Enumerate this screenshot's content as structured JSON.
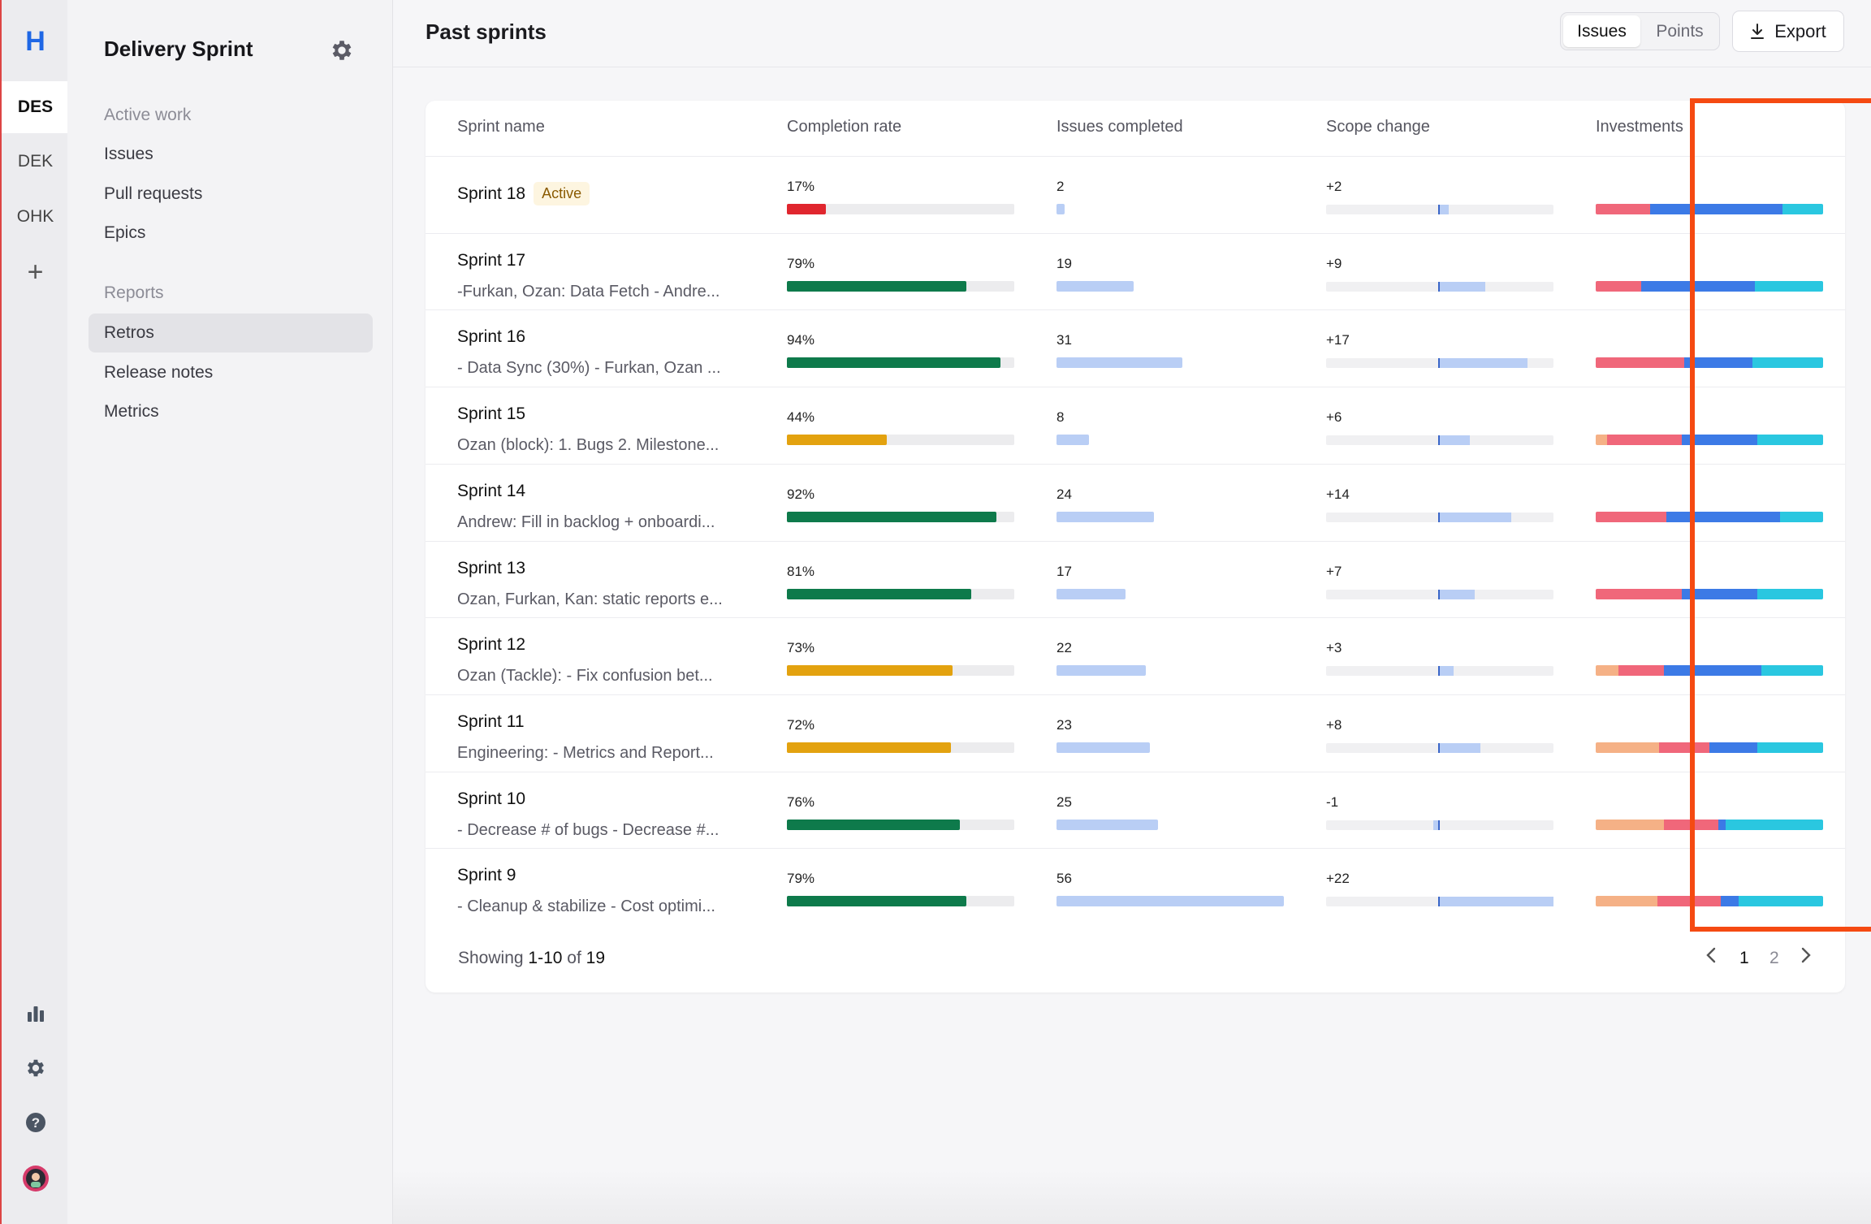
{
  "rail": {
    "logo": "H",
    "workspaces": [
      "DES",
      "DEK",
      "OHK"
    ],
    "add": "+"
  },
  "sidebar": {
    "title": "Delivery Sprint",
    "section_active": "Active work",
    "active_items": [
      "Issues",
      "Pull requests",
      "Epics"
    ],
    "section_reports": "Reports",
    "report_items": [
      "Retros",
      "Release notes",
      "Metrics"
    ]
  },
  "header": {
    "title": "Past sprints",
    "toggle": [
      "Issues",
      "Points"
    ],
    "export": "Export"
  },
  "table": {
    "columns": [
      "Sprint name",
      "Completion rate",
      "Issues completed",
      "Scope change",
      "Investments"
    ],
    "rows": [
      {
        "name": "Sprint 18",
        "badge": "Active",
        "desc": "",
        "rate": "17%",
        "rate_pct": 17,
        "rate_color": "#e0262e",
        "issues": "2",
        "scope": "+2",
        "scope_val": 2,
        "inv": [
          0,
          0.24,
          0.58,
          0.18
        ]
      },
      {
        "name": "Sprint 17",
        "desc": "-Furkan, Ozan: Data Fetch - Andre...",
        "rate": "79%",
        "rate_pct": 79,
        "rate_color": "#0e7a4b",
        "issues": "19",
        "scope": "+9",
        "scope_val": 9,
        "inv": [
          0,
          0.2,
          0.5,
          0.3
        ]
      },
      {
        "name": "Sprint 16",
        "desc": "- Data Sync (30%) - Furkan, Ozan ...",
        "rate": "94%",
        "rate_pct": 94,
        "rate_color": "#0e7a4b",
        "issues": "31",
        "scope": "+17",
        "scope_val": 17,
        "inv": [
          0,
          0.39,
          0.3,
          0.31
        ]
      },
      {
        "name": "Sprint 15",
        "desc": "Ozan (block): 1. Bugs 2. Milestone...",
        "rate": "44%",
        "rate_pct": 44,
        "rate_color": "#e3a20f",
        "issues": "8",
        "scope": "+6",
        "scope_val": 6,
        "inv": [
          0.05,
          0.33,
          0.33,
          0.29
        ]
      },
      {
        "name": "Sprint 14",
        "desc": "Andrew: Fill in backlog + onboardi...",
        "rate": "92%",
        "rate_pct": 92,
        "rate_color": "#0e7a4b",
        "issues": "24",
        "scope": "+14",
        "scope_val": 14,
        "inv": [
          0,
          0.31,
          0.5,
          0.19
        ]
      },
      {
        "name": "Sprint 13",
        "desc": "Ozan, Furkan, Kan: static reports e...",
        "rate": "81%",
        "rate_pct": 81,
        "rate_color": "#0e7a4b",
        "issues": "17",
        "scope": "+7",
        "scope_val": 7,
        "inv": [
          0,
          0.38,
          0.33,
          0.29
        ]
      },
      {
        "name": "Sprint 12",
        "desc": "Ozan (Tackle): - Fix confusion bet...",
        "rate": "73%",
        "rate_pct": 73,
        "rate_color": "#e3a20f",
        "issues": "22",
        "scope": "+3",
        "scope_val": 3,
        "inv": [
          0.1,
          0.2,
          0.43,
          0.27
        ]
      },
      {
        "name": "Sprint 11",
        "desc": "Engineering: - Metrics and Report...",
        "rate": "72%",
        "rate_pct": 72,
        "rate_color": "#e3a20f",
        "issues": "23",
        "scope": "+8",
        "scope_val": 8,
        "inv": [
          0.28,
          0.22,
          0.21,
          0.29
        ]
      },
      {
        "name": "Sprint 10",
        "desc": "- Decrease # of bugs - Decrease #...",
        "rate": "76%",
        "rate_pct": 76,
        "rate_color": "#0e7a4b",
        "issues": "25",
        "scope": "-1",
        "scope_val": -1,
        "inv": [
          0.3,
          0.24,
          0.03,
          0.43
        ]
      },
      {
        "name": "Sprint 9",
        "desc": "- Cleanup & stabilize - Cost optimi...",
        "rate": "79%",
        "rate_pct": 79,
        "rate_color": "#0e7a4b",
        "issues": "56",
        "scope": "+22",
        "scope_val": 22,
        "inv": [
          0.27,
          0.28,
          0.08,
          0.37
        ]
      }
    ],
    "investment_colors": [
      "#f5b186",
      "#f0677a",
      "#3c7ae6",
      "#2ac7e0"
    ],
    "issue_bar_color": "#b9cef5"
  },
  "footer": {
    "showing_prefix": "Showing",
    "range": "1-10",
    "of_word": "of",
    "total": "19",
    "pages": [
      "1",
      "2"
    ]
  }
}
